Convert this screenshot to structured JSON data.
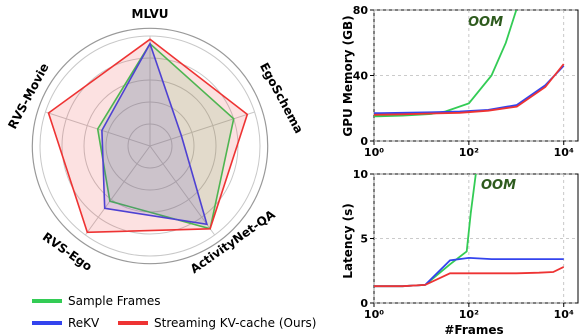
{
  "colors": {
    "sample": "#33cc55",
    "rekv": "#3344ee",
    "ours": "#ee3333"
  },
  "legend": {
    "sample": "Sample Frames",
    "rekv": "ReKV",
    "ours": "Streaming KV-cache (Ours)"
  },
  "chart_data": [
    {
      "type": "radar",
      "axes": [
        "MLVU",
        "EgoSchema",
        "ActivityNet-QA",
        "RVS-Ego",
        "RVS-Movie"
      ],
      "series": [
        {
          "name": "Sample Frames",
          "values": [
            0.93,
            0.8,
            0.93,
            0.62,
            0.5
          ],
          "color": "#33cc55"
        },
        {
          "name": "ReKV",
          "values": [
            0.93,
            0.3,
            0.88,
            0.7,
            0.46
          ],
          "color": "#3344ee"
        },
        {
          "name": "Streaming KV-cache (Ours)",
          "values": [
            0.97,
            0.93,
            0.93,
            0.97,
            0.97
          ],
          "color": "#ee3333"
        }
      ]
    },
    {
      "type": "line",
      "xscale": "log",
      "xlim": [
        1,
        20000
      ],
      "ylim": [
        0,
        80
      ],
      "xticks": [
        "10⁰",
        "10²",
        "10⁴"
      ],
      "yticks": [
        "0",
        "40",
        "80"
      ],
      "xlabel": "",
      "ylabel": "GPU Memory (GB)",
      "annotation": "OOM",
      "series": [
        {
          "name": "Sample Frames",
          "x": [
            1,
            4,
            16,
            32,
            100,
            300,
            600,
            1000
          ],
          "y": [
            15,
            15.5,
            16.5,
            18,
            23,
            40,
            60,
            80
          ]
        },
        {
          "name": "ReKV",
          "x": [
            1,
            4,
            16,
            64,
            256,
            1024,
            4096,
            10000
          ],
          "y": [
            17,
            17.2,
            17.5,
            18,
            19,
            22,
            34,
            46
          ]
        },
        {
          "name": "Streaming KV-cache (Ours)",
          "x": [
            1,
            4,
            16,
            64,
            256,
            1024,
            4096,
            10000
          ],
          "y": [
            16,
            16.3,
            16.8,
            17.2,
            18.5,
            21,
            33,
            47
          ]
        }
      ]
    },
    {
      "type": "line",
      "xscale": "log",
      "xlim": [
        1,
        20000
      ],
      "ylim": [
        0,
        10
      ],
      "xticks": [
        "10⁰",
        "10²",
        "10⁴"
      ],
      "yticks": [
        "0",
        "5",
        "10"
      ],
      "xlabel": "#Frames",
      "ylabel": "Latency (s)",
      "annotation": "OOM",
      "series": [
        {
          "name": "Sample Frames",
          "x": [
            1,
            4,
            12,
            40,
            90,
            110,
            140
          ],
          "y": [
            1.3,
            1.3,
            1.4,
            3.0,
            4.0,
            7.0,
            10.0
          ]
        },
        {
          "name": "ReKV",
          "x": [
            1,
            4,
            12,
            40,
            100,
            300,
            1000,
            3000,
            10000
          ],
          "y": [
            1.3,
            1.3,
            1.4,
            3.3,
            3.5,
            3.4,
            3.4,
            3.4,
            3.4
          ]
        },
        {
          "name": "Streaming KV-cache (Ours)",
          "x": [
            1,
            4,
            12,
            40,
            100,
            300,
            1000,
            3000,
            6000,
            10000
          ],
          "y": [
            1.3,
            1.3,
            1.4,
            2.3,
            2.3,
            2.3,
            2.3,
            2.35,
            2.4,
            2.8
          ]
        }
      ]
    }
  ]
}
